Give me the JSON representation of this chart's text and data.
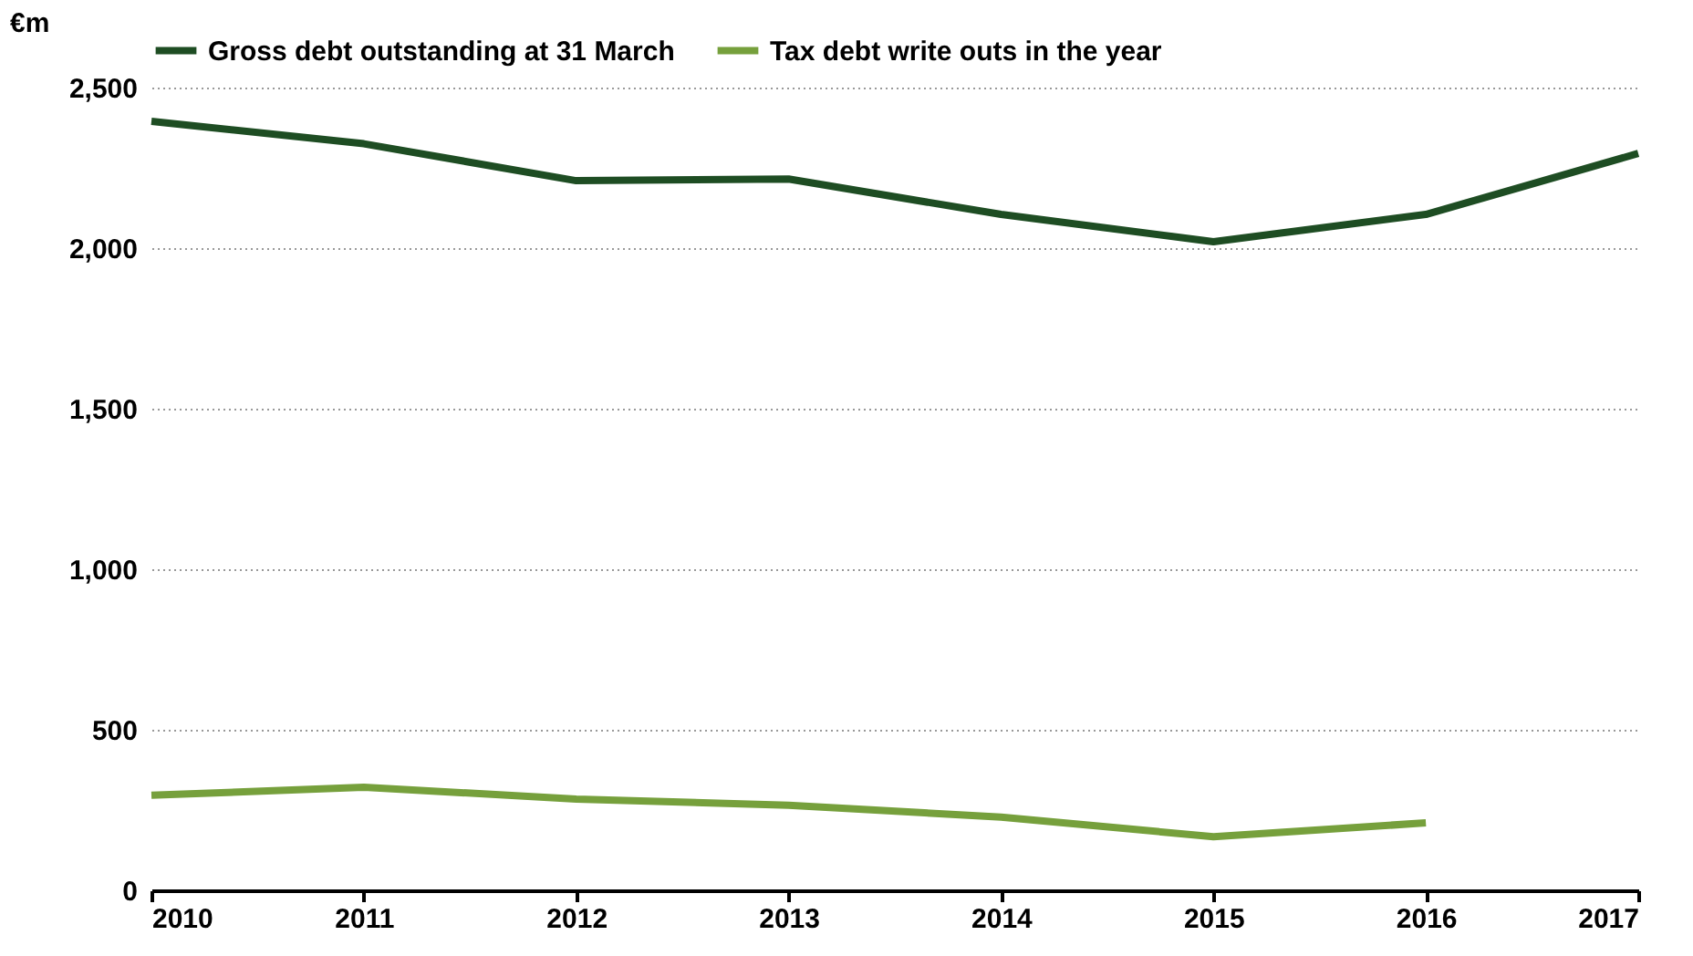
{
  "chart_data": {
    "type": "line",
    "ylabel": "€m",
    "x": [
      2010,
      2011,
      2012,
      2013,
      2014,
      2015,
      2016,
      2017
    ],
    "series": [
      {
        "name": "Gross debt outstanding at 31 March",
        "color": "#1e4d23",
        "values": [
          2395,
          2325,
          2210,
          2215,
          2105,
          2020,
          2105,
          2295
        ]
      },
      {
        "name": "Tax debt write outs in the year",
        "color": "#76a03c",
        "values": [
          296,
          321,
          284,
          265,
          228,
          167,
          210,
          null
        ]
      }
    ],
    "xlim": [
      2010,
      2017
    ],
    "xticks": [
      2010,
      2011,
      2012,
      2013,
      2014,
      2015,
      2016,
      2017
    ],
    "ylim": [
      0,
      2500
    ],
    "yticks": [
      0,
      500,
      {
        "value": 1000,
        "label": "1,000"
      },
      {
        "value": 1500,
        "label": "1,500"
      },
      {
        "value": 2000,
        "label": "2,000"
      },
      {
        "value": 2500,
        "label": "2,500"
      }
    ],
    "grid": "y",
    "legend": "top",
    "marker": "none",
    "line_style": "solid"
  }
}
